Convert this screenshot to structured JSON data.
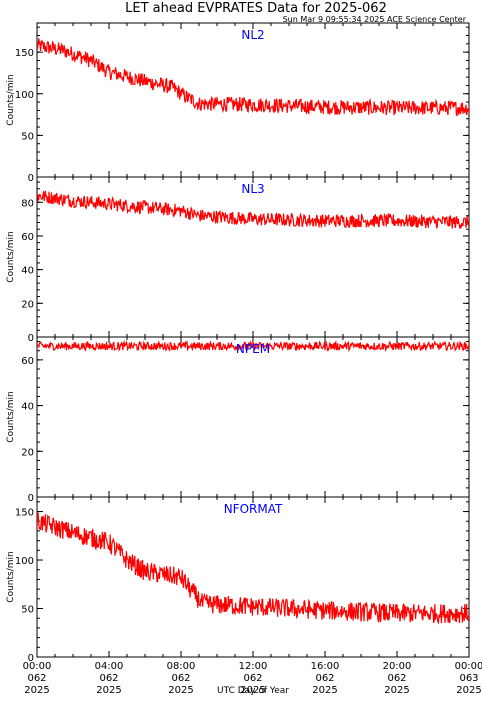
{
  "header": {
    "title": "LET ahead EVPRATES Data for 2025-062",
    "timestamp": "Sun Mar  9 09:55:34 2025 ACE Science Center"
  },
  "colors": {
    "series": "#ff0000",
    "panel_label": "#0000ff",
    "axes": "#000000"
  },
  "chart_data": [
    {
      "type": "line",
      "panel_label": "NL2",
      "ylabel": "Counts/min",
      "ylim": [
        0,
        185
      ],
      "yticks": [
        0,
        50,
        100,
        150
      ],
      "xlim": [
        0,
        24
      ],
      "trend": [
        [
          0,
          158
        ],
        [
          1.5,
          152
        ],
        [
          3,
          140
        ],
        [
          4,
          126
        ],
        [
          6,
          115
        ],
        [
          7.5,
          108
        ],
        [
          8.3,
          96
        ],
        [
          9,
          88
        ],
        [
          12,
          87
        ],
        [
          16,
          84
        ],
        [
          20,
          83
        ],
        [
          24,
          83
        ]
      ],
      "noise": 9,
      "color": "#ff0000"
    },
    {
      "type": "line",
      "panel_label": "NL3",
      "ylabel": "Counts/min",
      "ylim": [
        0,
        95
      ],
      "yticks": [
        0,
        20,
        40,
        60,
        80
      ],
      "xlim": [
        0,
        24
      ],
      "trend": [
        [
          0,
          84
        ],
        [
          2,
          81
        ],
        [
          5,
          78
        ],
        [
          8,
          75
        ],
        [
          9,
          72
        ],
        [
          12,
          70
        ],
        [
          16,
          69
        ],
        [
          20,
          69
        ],
        [
          24,
          68
        ]
      ],
      "noise": 4,
      "color": "#ff0000"
    },
    {
      "type": "line",
      "panel_label": "NPEM",
      "ylabel": "Counts/min",
      "ylim": [
        0,
        70
      ],
      "yticks": [
        0,
        20,
        40,
        60
      ],
      "xlim": [
        0,
        24
      ],
      "trend": [
        [
          0,
          66
        ],
        [
          24,
          66
        ]
      ],
      "noise": 1.8,
      "color": "#ff0000"
    },
    {
      "type": "line",
      "panel_label": "NFORMAT",
      "ylabel": "Counts/min",
      "ylim": [
        0,
        165
      ],
      "yticks": [
        0,
        50,
        100,
        150
      ],
      "xlim": [
        0,
        24
      ],
      "trend": [
        [
          0,
          140
        ],
        [
          2,
          128
        ],
        [
          4,
          118
        ],
        [
          5,
          100
        ],
        [
          6,
          88
        ],
        [
          8,
          82
        ],
        [
          8.5,
          70
        ],
        [
          9.2,
          55
        ],
        [
          12,
          52
        ],
        [
          16,
          48
        ],
        [
          20,
          45
        ],
        [
          24,
          45
        ]
      ],
      "noise": 10,
      "color": "#ff0000"
    }
  ],
  "x_axis": {
    "label": "UTC Day of Year",
    "ticks": [
      {
        "hour": 0,
        "time": "00:00",
        "day": "062",
        "year": "2025"
      },
      {
        "hour": 4,
        "time": "04:00",
        "day": "062",
        "year": "2025"
      },
      {
        "hour": 8,
        "time": "08:00",
        "day": "062",
        "year": "2025"
      },
      {
        "hour": 12,
        "time": "12:00",
        "day": "062",
        "year": "2025"
      },
      {
        "hour": 16,
        "time": "16:00",
        "day": "062",
        "year": "2025"
      },
      {
        "hour": 20,
        "time": "20:00",
        "day": "062",
        "year": "2025"
      },
      {
        "hour": 24,
        "time": "00:00",
        "day": "063",
        "year": "2025"
      }
    ]
  }
}
